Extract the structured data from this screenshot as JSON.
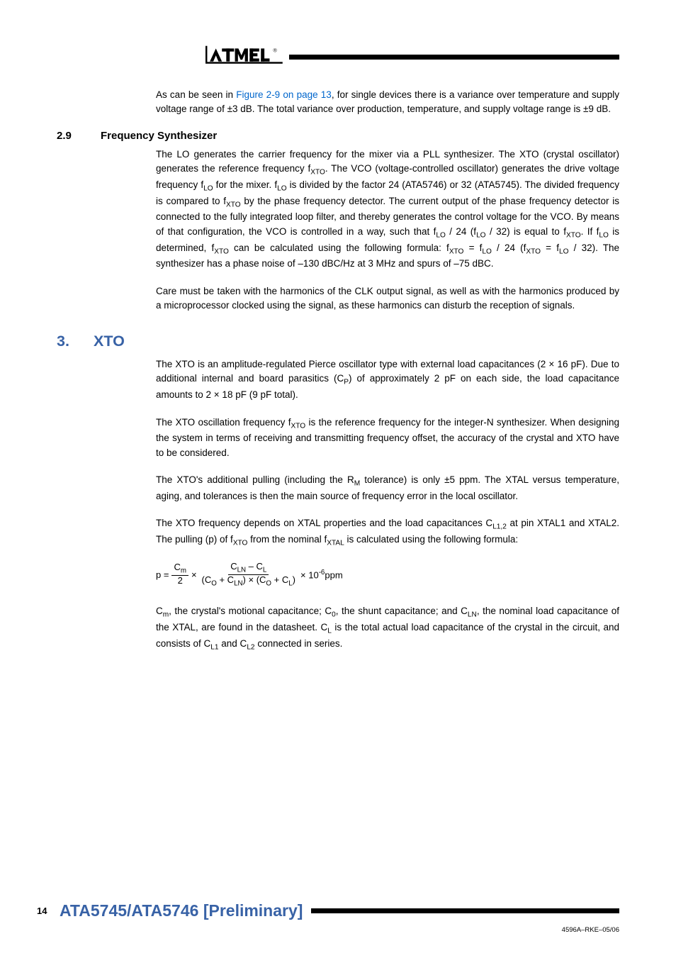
{
  "intro_para": "As can be seen in <span class=\"link\">Figure 2-9 on page 13</span>, for single devices there is a variance over temperature and supply voltage range of ±3 dB. The total variance over production, temperature, and supply voltage range is ±9 dB.",
  "sec29_num": "2.9",
  "sec29_title": "Frequency Synthesizer",
  "sec29_p1": "The LO generates the carrier frequency for the mixer via a PLL synthesizer. The XTO (crystal oscillator) generates the reference frequency f<sub>XTO</sub>. The VCO (voltage-controlled oscillator) generates the drive voltage frequency f<sub>LO</sub> for the mixer. f<sub>LO</sub> is divided by the factor 24 (ATA5746) or 32 (ATA5745). The divided frequency is compared to f<sub>XTO</sub> by the phase frequency detector. The current output of the phase frequency detector is connected to the fully integrated loop filter, and thereby generates the control voltage for the VCO. By means of that configuration, the VCO is controlled in a way, such that f<sub>LO</sub> / 24 (f<sub>LO</sub> / 32) is equal to f<sub>XTO</sub>. If f<sub>LO</sub> is determined, f<sub>XTO</sub> can be calculated using the following formula: f<sub>XTO</sub> = f<sub>LO</sub> / 24 (f<sub>XTO</sub> = f<sub>LO</sub> / 32). The synthesizer has a phase noise of –130 dBC/Hz at 3 MHz and spurs of –75 dBC.",
  "sec29_p2": "Care must be taken with the harmonics of the CLK output signal, as well as with the harmonics produced by a microprocessor clocked using the signal, as these harmonics can disturb the reception of signals.",
  "h3_num": "3.",
  "h3_title": "XTO",
  "h3_p1": "The XTO is an amplitude-regulated Pierce oscillator type with external load capacitances (2 × 16 pF). Due to additional internal and board parasitics (C<sub>P</sub>) of approximately 2 pF on each side, the load capacitance amounts to 2 × 18 pF (9 pF total).",
  "h3_p2": "The XTO oscillation frequency f<sub>XTO</sub> is the reference frequency for the integer-N synthesizer. When designing the system in terms of receiving and transmitting frequency offset, the accuracy of the crystal and XTO have to be considered.",
  "h3_p3": "The XTO's additional pulling (including the R<sub>M</sub> tolerance) is only ±5 ppm. The XTAL versus temperature, aging, and tolerances is then the main source of frequency error in the local oscillator.",
  "h3_p4": "The XTO frequency depends on XTAL properties and the load capacitances C<sub>L1,2</sub> at pin XTAL1 and XTAL2. The pulling (p) of f<sub>XTO</sub> from the nominal f<sub>XTAL</sub> is calculated using the following formula:",
  "formula_text": {
    "p_eq": "p =",
    "frac1_num": "C<sub>m</sub>",
    "frac1_den": "2",
    "times1": "×",
    "frac2_num": "C<sub>LN</sub> – C<sub>L</sub>",
    "frac2_den": "(C<sub>O</sub> + C<sub>LN</sub>) × (C<sub>O</sub> + C<sub>L</sub>)",
    "times2": "× 10<sup style=\"font-size:0.75em\">-6</sup>ppm"
  },
  "h3_p5": "C<sub>m</sub>, the crystal's motional capacitance; C<sub>0</sub>, the shunt capacitance; and C<sub>LN</sub>, the nominal load capacitance of the XTAL, are found in the datasheet. C<sub>L</sub> is the total actual load capacitance of the crystal in the circuit, and consists of C<sub>L1</sub> and C<sub>L2</sub> connected in series.",
  "page_num": "14",
  "doc_title": "ATA5745/ATA5746 [Preliminary]",
  "footer_id": "4596A–RKE–05/06",
  "colors": {
    "heading_blue": "#3862a6",
    "link_blue": "#0066cc",
    "black": "#000000",
    "white": "#ffffff"
  }
}
